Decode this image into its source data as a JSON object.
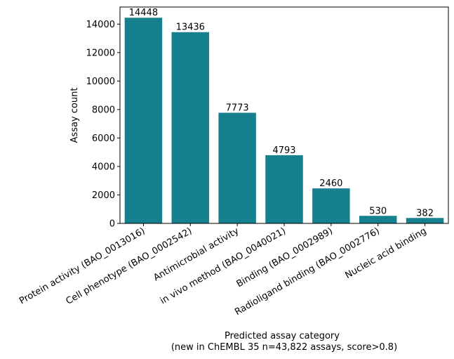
{
  "chart_data": {
    "type": "bar",
    "categories": [
      "Protein activity (BAO_0013016)",
      "Cell phenotype (BAO_0002542)",
      "Antimicrobial activity",
      "in vivo method (BAO_0040021)",
      "Binding (BAO_0002989)",
      "Radioligand binding (BAO_0002776)",
      "Nucleic acid binding"
    ],
    "values": [
      14448,
      13436,
      7773,
      4793,
      2460,
      530,
      382
    ],
    "data_labels": [
      "14448",
      "13436",
      "7773",
      "4793",
      "2460",
      "530",
      "382"
    ],
    "title": "",
    "xlabel_line1": "Predicted assay category",
    "xlabel_line2": "(new in ChEMBL 35 n=43,822 assays, score>0.8)",
    "ylabel": "Assay count",
    "ylim": [
      0,
      15200
    ],
    "yticks": [
      0,
      2000,
      4000,
      6000,
      8000,
      10000,
      12000,
      14000
    ],
    "ytick_labels": [
      "0",
      "2000",
      "4000",
      "6000",
      "8000",
      "10000",
      "12000",
      "14000"
    ],
    "bar_color": "#17808e",
    "grid": false,
    "legend": "none"
  }
}
